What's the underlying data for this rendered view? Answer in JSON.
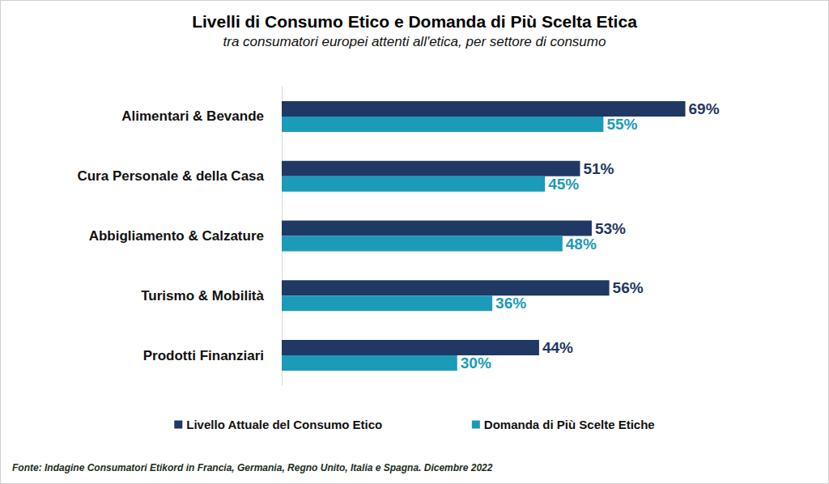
{
  "chart_data": {
    "type": "bar",
    "orientation": "horizontal",
    "title": "Livelli di Consumo Etico e Domanda di Più Scelta Etica",
    "subtitle": "tra consumatori europei attenti all'etica, per settore di consumo",
    "source": "Fonte: Indagine Consumatori Etikord in Francia, Germania, Regno Unito, Italia e Spagna. Dicembre 2022",
    "categories": [
      "Alimentari & Bevande",
      "Cura Personale & della Casa",
      "Abbigliamento & Calzature",
      "Turismo & Mobilità",
      "Prodotti Finanziari"
    ],
    "series": [
      {
        "name": "Livello Attuale del Consumo Etico",
        "color": "#1f3864",
        "values": [
          69,
          51,
          53,
          56,
          44
        ],
        "value_labels": [
          "69%",
          "51%",
          "53%",
          "56%",
          "44%"
        ]
      },
      {
        "name": "Domanda di Più Scelte Etiche",
        "color": "#1b9bb8",
        "values": [
          55,
          45,
          48,
          36,
          30
        ],
        "value_labels": [
          "55%",
          "45%",
          "48%",
          "36%",
          "30%"
        ]
      }
    ],
    "xlim": [
      0,
      80
    ],
    "grid": false,
    "legend": "bottom",
    "data_labels": true,
    "tick_labels": "y"
  }
}
